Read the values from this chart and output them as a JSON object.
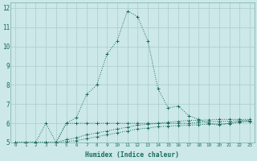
{
  "xlabel": "Humidex (Indice chaleur)",
  "bg_color": "#cce8e8",
  "grid_color": "#aacccc",
  "line_color": "#1a6b5a",
  "xlim": [
    -0.5,
    23.5
  ],
  "ylim": [
    5,
    12.3
  ],
  "xtick_labels": [
    "0",
    "1",
    "2",
    "3",
    "4",
    "5",
    "6",
    "7",
    "8",
    "9",
    "10",
    "11",
    "12",
    "13",
    "14",
    "15",
    "16",
    "17",
    "18",
    "19",
    "20",
    "21",
    "22",
    "23"
  ],
  "yticks": [
    5,
    6,
    7,
    8,
    9,
    10,
    11,
    12
  ],
  "series1": [
    5.0,
    5.0,
    5.0,
    6.0,
    5.0,
    6.0,
    6.3,
    7.5,
    8.0,
    9.6,
    10.3,
    11.85,
    11.55,
    10.3,
    7.8,
    6.8,
    6.9,
    6.4,
    6.2,
    6.0,
    5.9,
    6.0,
    6.1,
    6.1
  ],
  "series2": [
    5.0,
    5.0,
    5.0,
    5.0,
    5.0,
    5.15,
    5.25,
    5.4,
    5.5,
    5.6,
    5.7,
    5.8,
    5.9,
    5.95,
    6.0,
    6.05,
    6.1,
    6.15,
    6.15,
    6.18,
    6.2,
    6.2,
    6.2,
    6.2
  ],
  "series3": [
    5.0,
    5.0,
    5.0,
    5.0,
    5.0,
    5.05,
    5.1,
    5.2,
    5.3,
    5.4,
    5.5,
    5.6,
    5.7,
    5.75,
    5.82,
    5.85,
    5.88,
    5.9,
    5.93,
    5.95,
    5.97,
    5.98,
    6.05,
    6.1
  ],
  "series4": [
    5.0,
    5.0,
    5.0,
    5.0,
    5.0,
    6.0,
    6.0,
    6.0,
    6.0,
    6.0,
    6.0,
    6.0,
    6.0,
    6.0,
    6.0,
    6.0,
    6.0,
    6.0,
    6.05,
    6.08,
    6.1,
    6.1,
    6.15,
    6.15
  ]
}
